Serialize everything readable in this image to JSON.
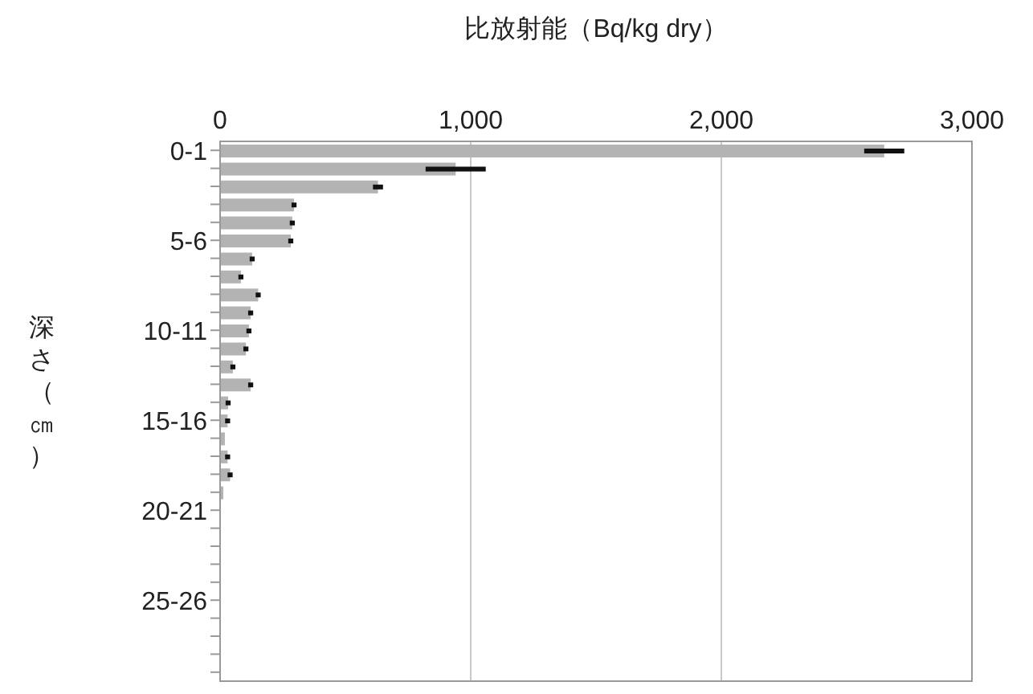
{
  "chart_data": {
    "type": "bar",
    "orientation": "horizontal",
    "xlabel": "比放射能（Bq/kg dry）",
    "ylabel": "深さ（㎝）",
    "categories": [
      "0-1",
      null,
      null,
      null,
      null,
      "5-6",
      null,
      null,
      null,
      null,
      "10-11",
      null,
      null,
      null,
      null,
      "15-16",
      null,
      null,
      null,
      null,
      "20-21",
      null,
      null,
      null,
      null,
      "25-26",
      null,
      null,
      null,
      null
    ],
    "values": [
      2650,
      940,
      630,
      295,
      288,
      282,
      128,
      83,
      152,
      122,
      115,
      103,
      51,
      122,
      32,
      30,
      19,
      30,
      40,
      13,
      null,
      null,
      null,
      null,
      null,
      null,
      null,
      null,
      null,
      null
    ],
    "errors": [
      80,
      120,
      20,
      10,
      10,
      10,
      10,
      10,
      10,
      10,
      10,
      10,
      10,
      10,
      10,
      10,
      null,
      10,
      10,
      null,
      null,
      null,
      null,
      null,
      null,
      null,
      null,
      null,
      null,
      null
    ],
    "color": "#b3b3b3",
    "xlim": [
      0,
      3000
    ],
    "xticks": [
      {
        "value": 0,
        "label": "0"
      },
      {
        "value": 1000,
        "label": "1,000"
      },
      {
        "value": 2000,
        "label": "2,000"
      },
      {
        "value": 3000,
        "label": "3,000"
      }
    ],
    "grid": "x"
  }
}
